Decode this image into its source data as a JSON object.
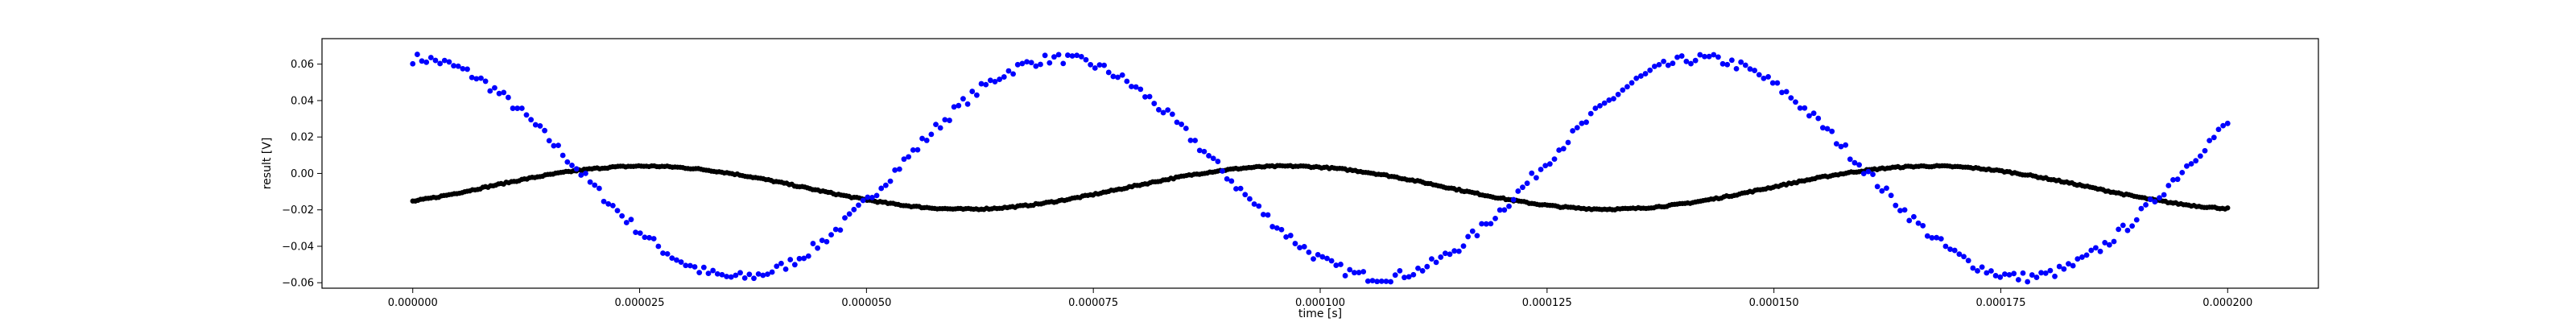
{
  "chart_data": {
    "type": "scatter",
    "xlabel": "time [s]",
    "ylabel": "result [V]",
    "xlim": [
      -1e-05,
      0.00021
    ],
    "ylim": [
      -0.063,
      0.074
    ],
    "grid": false,
    "x_ticks": [
      0.0,
      2.5e-05,
      5e-05,
      7.5e-05,
      0.0001,
      0.000125,
      0.00015,
      0.000175,
      0.0002
    ],
    "x_tick_labels": [
      "0.000000",
      "0.000025",
      "0.000050",
      "0.000075",
      "0.000100",
      "0.000125",
      "0.000150",
      "0.000175",
      "0.000200"
    ],
    "y_ticks": [
      -0.06,
      -0.04,
      -0.02,
      0.0,
      0.02,
      0.04,
      0.06
    ],
    "y_tick_labels": [
      "−0.06",
      "−0.04",
      "−0.02",
      "0.00",
      "0.02",
      "0.04",
      "0.06"
    ],
    "series": [
      {
        "color": "#0000ff",
        "model": "sine",
        "x_range": [
          0.0,
          0.0002
        ],
        "n_points": 400,
        "amplitude": 0.06,
        "period": 7.09e-05,
        "phase_shift": 3e-07,
        "offset": 0.003,
        "spread": 0.0028
      },
      {
        "color": "#000000",
        "model": "sine",
        "x_range": [
          0.0,
          0.0002
        ],
        "n_points": 700,
        "amplitude": 0.0118,
        "period": 7.09e-05,
        "phase_shift": 2.55e-05,
        "offset": -0.0078,
        "spread": 0.0004
      }
    ]
  }
}
